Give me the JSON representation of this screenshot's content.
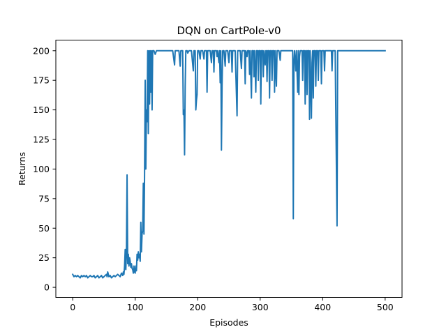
{
  "chart_data": {
    "type": "line",
    "title": "DQN on CartPole-v0",
    "xlabel": "Episodes",
    "ylabel": "Returns",
    "xlim": [
      -27,
      527
    ],
    "ylim": [
      -8.5,
      209
    ],
    "xticks": [
      0,
      100,
      200,
      300,
      400,
      500
    ],
    "yticks": [
      0,
      25,
      50,
      75,
      100,
      125,
      150,
      175,
      200
    ],
    "grid": false,
    "legend": "none",
    "line_color": "#1f77b4",
    "series": [
      {
        "points": [
          [
            0,
            11
          ],
          [
            2,
            9
          ],
          [
            4,
            10
          ],
          [
            6,
            9
          ],
          [
            8,
            10
          ],
          [
            10,
            9
          ],
          [
            12,
            8
          ],
          [
            14,
            10
          ],
          [
            16,
            9
          ],
          [
            18,
            10
          ],
          [
            20,
            9
          ],
          [
            22,
            10
          ],
          [
            24,
            8
          ],
          [
            26,
            9
          ],
          [
            28,
            10
          ],
          [
            30,
            9
          ],
          [
            32,
            9
          ],
          [
            34,
            10
          ],
          [
            36,
            8
          ],
          [
            38,
            9
          ],
          [
            40,
            10
          ],
          [
            42,
            8
          ],
          [
            44,
            9
          ],
          [
            46,
            10
          ],
          [
            48,
            8
          ],
          [
            50,
            9
          ],
          [
            52,
            10
          ],
          [
            54,
            11
          ],
          [
            55,
            9
          ],
          [
            56,
            13
          ],
          [
            58,
            9
          ],
          [
            60,
            10
          ],
          [
            62,
            8
          ],
          [
            64,
            9
          ],
          [
            66,
            10
          ],
          [
            68,
            9
          ],
          [
            70,
            10
          ],
          [
            72,
            11
          ],
          [
            74,
            10
          ],
          [
            76,
            9
          ],
          [
            78,
            12
          ],
          [
            80,
            10
          ],
          [
            81,
            13
          ],
          [
            82,
            11
          ],
          [
            83,
            18
          ],
          [
            84,
            32
          ],
          [
            85,
            15
          ],
          [
            86,
            30
          ],
          [
            87,
            95
          ],
          [
            88,
            20
          ],
          [
            89,
            28
          ],
          [
            90,
            18
          ],
          [
            91,
            25
          ],
          [
            92,
            22
          ],
          [
            93,
            17
          ],
          [
            94,
            20
          ],
          [
            95,
            16
          ],
          [
            96,
            15
          ],
          [
            97,
            12
          ],
          [
            98,
            18
          ],
          [
            99,
            13
          ],
          [
            100,
            12
          ],
          [
            101,
            18
          ],
          [
            102,
            14
          ],
          [
            103,
            28
          ],
          [
            104,
            23
          ],
          [
            105,
            30
          ],
          [
            106,
            25
          ],
          [
            107,
            28
          ],
          [
            108,
            22
          ],
          [
            109,
            55
          ],
          [
            110,
            30
          ],
          [
            111,
            45
          ],
          [
            112,
            48
          ],
          [
            113,
            88
          ],
          [
            114,
            45
          ],
          [
            115,
            95
          ],
          [
            116,
            175
          ],
          [
            117,
            100
          ],
          [
            118,
            150
          ],
          [
            119,
            140
          ],
          [
            120,
            200
          ],
          [
            121,
            130
          ],
          [
            122,
            200
          ],
          [
            123,
            155
          ],
          [
            124,
            200
          ],
          [
            125,
            165
          ],
          [
            126,
            200
          ],
          [
            127,
            150
          ],
          [
            128,
            200
          ],
          [
            130,
            200
          ],
          [
            132,
            197
          ],
          [
            134,
            200
          ],
          [
            140,
            200
          ],
          [
            150,
            200
          ],
          [
            160,
            200
          ],
          [
            163,
            188
          ],
          [
            164,
            200
          ],
          [
            170,
            200
          ],
          [
            172,
            187
          ],
          [
            173,
            200
          ],
          [
            176,
            200
          ],
          [
            177,
            146
          ],
          [
            178,
            150
          ],
          [
            179,
            112
          ],
          [
            180,
            170
          ],
          [
            181,
            200
          ],
          [
            183,
            200
          ],
          [
            184,
            198
          ],
          [
            186,
            200
          ],
          [
            190,
            200
          ],
          [
            193,
            183
          ],
          [
            194,
            200
          ],
          [
            196,
            200
          ],
          [
            197,
            150
          ],
          [
            198,
            158
          ],
          [
            199,
            163
          ],
          [
            200,
            200
          ],
          [
            202,
            200
          ],
          [
            204,
            193
          ],
          [
            205,
            200
          ],
          [
            208,
            200
          ],
          [
            210,
            193
          ],
          [
            211,
            200
          ],
          [
            214,
            200
          ],
          [
            215,
            165
          ],
          [
            216,
            200
          ],
          [
            220,
            200
          ],
          [
            222,
            190
          ],
          [
            223,
            200
          ],
          [
            225,
            200
          ],
          [
            226,
            182
          ],
          [
            227,
            200
          ],
          [
            230,
            200
          ],
          [
            231,
            195
          ],
          [
            232,
            200
          ],
          [
            234,
            190
          ],
          [
            235,
            200
          ],
          [
            236,
            173
          ],
          [
            237,
            200
          ],
          [
            238,
            116
          ],
          [
            239,
            170
          ],
          [
            240,
            200
          ],
          [
            242,
            200
          ],
          [
            244,
            187
          ],
          [
            245,
            200
          ],
          [
            248,
            200
          ],
          [
            250,
            190
          ],
          [
            251,
            200
          ],
          [
            254,
            200
          ],
          [
            255,
            182
          ],
          [
            256,
            200
          ],
          [
            260,
            200
          ],
          [
            263,
            145
          ],
          [
            264,
            200
          ],
          [
            268,
            200
          ],
          [
            270,
            185
          ],
          [
            271,
            200
          ],
          [
            275,
            200
          ],
          [
            276,
            172
          ],
          [
            277,
            200
          ],
          [
            279,
            195
          ],
          [
            280,
            200
          ],
          [
            282,
            200
          ],
          [
            283,
            180
          ],
          [
            284,
            200
          ],
          [
            286,
            160
          ],
          [
            287,
            200
          ],
          [
            289,
            200
          ],
          [
            290,
            178
          ],
          [
            291,
            200
          ],
          [
            293,
            165
          ],
          [
            294,
            200
          ],
          [
            296,
            200
          ],
          [
            297,
            175
          ],
          [
            298,
            200
          ],
          [
            300,
            200
          ],
          [
            301,
            155
          ],
          [
            302,
            200
          ],
          [
            304,
            200
          ],
          [
            305,
            178
          ],
          [
            306,
            200
          ],
          [
            308,
            188
          ],
          [
            309,
            200
          ],
          [
            310,
            200
          ],
          [
            311,
            174
          ],
          [
            312,
            200
          ],
          [
            314,
            200
          ],
          [
            315,
            160
          ],
          [
            316,
            200
          ],
          [
            318,
            200
          ],
          [
            319,
            175
          ],
          [
            320,
            200
          ],
          [
            322,
            200
          ],
          [
            323,
            165
          ],
          [
            324,
            200
          ],
          [
            326,
            170
          ],
          [
            327,
            200
          ],
          [
            330,
            200
          ],
          [
            332,
            192
          ],
          [
            333,
            200
          ],
          [
            335,
            200
          ],
          [
            352,
            200
          ],
          [
            353,
            58
          ],
          [
            354,
            190
          ],
          [
            355,
            200
          ],
          [
            357,
            183
          ],
          [
            358,
            200
          ],
          [
            360,
            165
          ],
          [
            361,
            200
          ],
          [
            362,
            163
          ],
          [
            363,
            195
          ],
          [
            364,
            200
          ],
          [
            367,
            200
          ],
          [
            368,
            175
          ],
          [
            369,
            200
          ],
          [
            371,
            200
          ],
          [
            372,
            155
          ],
          [
            373,
            200
          ],
          [
            374,
            200
          ],
          [
            375,
            163
          ],
          [
            376,
            200
          ],
          [
            378,
            200
          ],
          [
            379,
            142
          ],
          [
            380,
            200
          ],
          [
            382,
            143
          ],
          [
            383,
            190
          ],
          [
            384,
            200
          ],
          [
            385,
            160
          ],
          [
            386,
            200
          ],
          [
            388,
            200
          ],
          [
            389,
            170
          ],
          [
            390,
            200
          ],
          [
            392,
            200
          ],
          [
            393,
            175
          ],
          [
            394,
            200
          ],
          [
            397,
            200
          ],
          [
            398,
            172
          ],
          [
            399,
            200
          ],
          [
            402,
            200
          ],
          [
            403,
            183
          ],
          [
            404,
            200
          ],
          [
            410,
            200
          ],
          [
            414,
            200
          ],
          [
            415,
            183
          ],
          [
            416,
            200
          ],
          [
            420,
            200
          ],
          [
            423,
            52
          ],
          [
            424,
            200
          ],
          [
            430,
            200
          ],
          [
            440,
            200
          ],
          [
            450,
            200
          ],
          [
            460,
            200
          ],
          [
            470,
            200
          ],
          [
            480,
            200
          ],
          [
            490,
            200
          ],
          [
            500,
            200
          ]
        ]
      }
    ]
  }
}
